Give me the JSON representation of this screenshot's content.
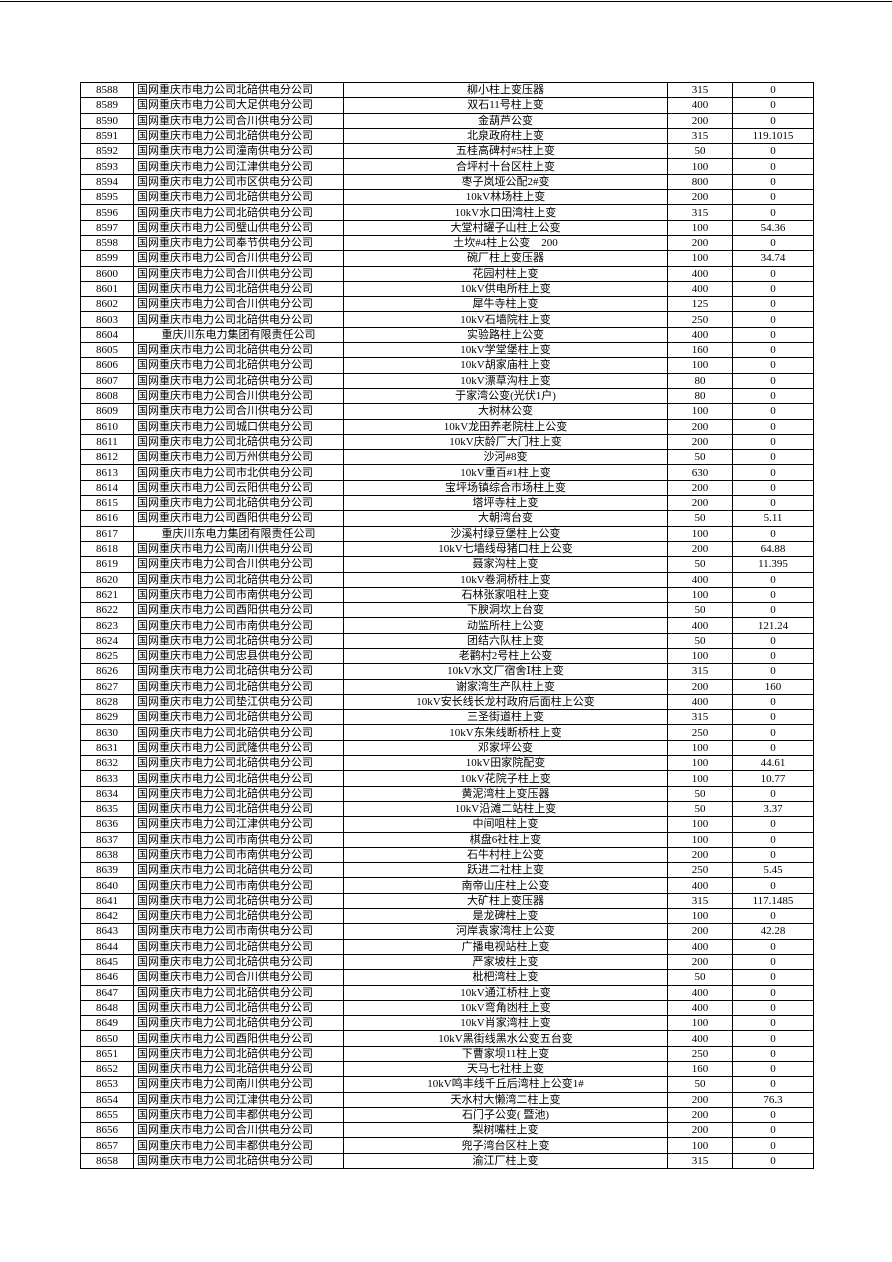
{
  "table": {
    "rows": [
      [
        "8588",
        "国网重庆市电力公司北碚供电分公司",
        "柳小柱上变压器",
        "315",
        "0"
      ],
      [
        "8589",
        "国网重庆市电力公司大足供电分公司",
        "双石11号柱上变",
        "400",
        "0"
      ],
      [
        "8590",
        "国网重庆市电力公司合川供电分公司",
        "金葫芦公变",
        "200",
        "0"
      ],
      [
        "8591",
        "国网重庆市电力公司北碚供电分公司",
        "北泉政府柱上变",
        "315",
        "119.1015"
      ],
      [
        "8592",
        "国网重庆市电力公司潼南供电分公司",
        "五桂高碑村#5柱上变",
        "50",
        "0"
      ],
      [
        "8593",
        "国网重庆市电力公司江津供电分公司",
        "合坪村十台区柱上变",
        "100",
        "0"
      ],
      [
        "8594",
        "国网重庆市电力公司市区供电分公司",
        "枣子岚垭公配2#变",
        "800",
        "0"
      ],
      [
        "8595",
        "国网重庆市电力公司北碚供电分公司",
        "10kV林场柱上变",
        "200",
        "0"
      ],
      [
        "8596",
        "国网重庆市电力公司北碚供电分公司",
        "10kV水口田湾柱上变",
        "315",
        "0"
      ],
      [
        "8597",
        "国网重庆市电力公司璧山供电分公司",
        "大堂村罐子山柱上公变",
        "100",
        "54.36"
      ],
      [
        "8598",
        "国网重庆市电力公司奉节供电分公司",
        "土坎#4柱上公变　200",
        "200",
        "0"
      ],
      [
        "8599",
        "国网重庆市电力公司合川供电分公司",
        "碗厂柱上变压器",
        "100",
        "34.74"
      ],
      [
        "8600",
        "国网重庆市电力公司合川供电分公司",
        "花园村柱上变",
        "400",
        "0"
      ],
      [
        "8601",
        "国网重庆市电力公司北碚供电分公司",
        "10kV供电所柱上变",
        "400",
        "0"
      ],
      [
        "8602",
        "国网重庆市电力公司合川供电分公司",
        "犀牛寺柱上变",
        "125",
        "0"
      ],
      [
        "8603",
        "国网重庆市电力公司北碚供电分公司",
        "10kV石墙院柱上变",
        "250",
        "0"
      ],
      [
        "8604",
        "重庆川东电力集团有限责任公司",
        "实验路柱上公变",
        "400",
        "0"
      ],
      [
        "8605",
        "国网重庆市电力公司北碚供电分公司",
        "10kV学堂堡柱上变",
        "160",
        "0"
      ],
      [
        "8606",
        "国网重庆市电力公司北碚供电分公司",
        "10kV胡家庙柱上变",
        "100",
        "0"
      ],
      [
        "8607",
        "国网重庆市电力公司北碚供电分公司",
        "10kV漂草沟柱上变",
        "80",
        "0"
      ],
      [
        "8608",
        "国网重庆市电力公司合川供电分公司",
        "于家湾公变(光伏1户)",
        "80",
        "0"
      ],
      [
        "8609",
        "国网重庆市电力公司合川供电分公司",
        "大树林公变",
        "100",
        "0"
      ],
      [
        "8610",
        "国网重庆市电力公司城口供电分公司",
        "10kV龙田养老院柱上公变",
        "200",
        "0"
      ],
      [
        "8611",
        "国网重庆市电力公司北碚供电分公司",
        "10kV庆龄厂大门柱上变",
        "200",
        "0"
      ],
      [
        "8612",
        "国网重庆市电力公司万州供电分公司",
        "沙河#8变",
        "50",
        "0"
      ],
      [
        "8613",
        "国网重庆市电力公司市北供电分公司",
        "10kV重百#1柱上变",
        "630",
        "0"
      ],
      [
        "8614",
        "国网重庆市电力公司云阳供电分公司",
        "宝坪场镇综合市场柱上变",
        "200",
        "0"
      ],
      [
        "8615",
        "国网重庆市电力公司北碚供电分公司",
        "塔坪寺柱上变",
        "200",
        "0"
      ],
      [
        "8616",
        "国网重庆市电力公司酉阳供电分公司",
        "大朝湾台变",
        "50",
        "5.11"
      ],
      [
        "8617",
        "重庆川东电力集团有限责任公司",
        "沙溪村绿豆堡柱上公变",
        "100",
        "0"
      ],
      [
        "8618",
        "国网重庆市电力公司南川供电分公司",
        "10kV七墙线母猪口柱上公变",
        "200",
        "64.88"
      ],
      [
        "8619",
        "国网重庆市电力公司合川供电分公司",
        "聂家沟柱上变",
        "50",
        "11.395"
      ],
      [
        "8620",
        "国网重庆市电力公司北碚供电分公司",
        "10kV卷洞桥柱上变",
        "400",
        "0"
      ],
      [
        "8621",
        "国网重庆市电力公司市南供电分公司",
        "石林张家咀柱上变",
        "100",
        "0"
      ],
      [
        "8622",
        "国网重庆市电力公司酉阳供电分公司",
        "下腴洞坎上台变",
        "50",
        "0"
      ],
      [
        "8623",
        "国网重庆市电力公司市南供电分公司",
        "动监所柱上公变",
        "400",
        "121.24"
      ],
      [
        "8624",
        "国网重庆市电力公司北碚供电分公司",
        "团结六队柱上变",
        "50",
        "0"
      ],
      [
        "8625",
        "国网重庆市电力公司忠县供电分公司",
        "老鹳村2号柱上公变",
        "100",
        "0"
      ],
      [
        "8626",
        "国网重庆市电力公司北碚供电分公司",
        "10kV水文厂宿舍Ⅰ柱上变",
        "315",
        "0"
      ],
      [
        "8627",
        "国网重庆市电力公司北碚供电分公司",
        "谢家湾生产队柱上变",
        "200",
        "160"
      ],
      [
        "8628",
        "国网重庆市电力公司垫江供电分公司",
        "10kV安长线长龙村政府后面柱上公变",
        "400",
        "0"
      ],
      [
        "8629",
        "国网重庆市电力公司北碚供电分公司",
        "三圣街道柱上变",
        "315",
        "0"
      ],
      [
        "8630",
        "国网重庆市电力公司北碚供电分公司",
        "10kV东朱线断桥柱上变",
        "250",
        "0"
      ],
      [
        "8631",
        "国网重庆市电力公司武隆供电分公司",
        "邓家坪公变",
        "100",
        "0"
      ],
      [
        "8632",
        "国网重庆市电力公司北碚供电分公司",
        "10kV田家院配变",
        "100",
        "44.61"
      ],
      [
        "8633",
        "国网重庆市电力公司北碚供电分公司",
        "10kV花院子柱上变",
        "100",
        "10.77"
      ],
      [
        "8634",
        "国网重庆市电力公司北碚供电分公司",
        "黄泥湾柱上变压器",
        "50",
        "0"
      ],
      [
        "8635",
        "国网重庆市电力公司北碚供电分公司",
        "10kV沿滩二站柱上变",
        "50",
        "3.37"
      ],
      [
        "8636",
        "国网重庆市电力公司江津供电分公司",
        "中间咀柱上变",
        "100",
        "0"
      ],
      [
        "8637",
        "国网重庆市电力公司市南供电分公司",
        "棋盘6社柱上变",
        "100",
        "0"
      ],
      [
        "8638",
        "国网重庆市电力公司市南供电分公司",
        "石牛村柱上公变",
        "200",
        "0"
      ],
      [
        "8639",
        "国网重庆市电力公司北碚供电分公司",
        "跃进二社柱上变",
        "250",
        "5.45"
      ],
      [
        "8640",
        "国网重庆市电力公司市南供电分公司",
        "南帝山庄柱上公变",
        "400",
        "0"
      ],
      [
        "8641",
        "国网重庆市电力公司北碚供电分公司",
        "大矿柱上变压器",
        "315",
        "117.1485"
      ],
      [
        "8642",
        "国网重庆市电力公司北碚供电分公司",
        "是龙碑柱上变",
        "100",
        "0"
      ],
      [
        "8643",
        "国网重庆市电力公司市南供电分公司",
        "河岸袁家湾柱上公变",
        "200",
        "42.28"
      ],
      [
        "8644",
        "国网重庆市电力公司北碚供电分公司",
        "广播电视站柱上变",
        "400",
        "0"
      ],
      [
        "8645",
        "国网重庆市电力公司北碚供电分公司",
        "严家坡柱上变",
        "200",
        "0"
      ],
      [
        "8646",
        "国网重庆市电力公司合川供电分公司",
        "枇杷湾柱上变",
        "50",
        "0"
      ],
      [
        "8647",
        "国网重庆市电力公司北碚供电分公司",
        "10kV通江桥柱上变",
        "400",
        "0"
      ],
      [
        "8648",
        "国网重庆市电力公司北碚供电分公司",
        "10kV弯角凼柱上变",
        "400",
        "0"
      ],
      [
        "8649",
        "国网重庆市电力公司北碚供电分公司",
        "10kV肖家湾柱上变",
        "100",
        "0"
      ],
      [
        "8650",
        "国网重庆市电力公司酉阳供电分公司",
        "10kV黑街线黑水公变五台变",
        "400",
        "0"
      ],
      [
        "8651",
        "国网重庆市电力公司北碚供电分公司",
        "下曹家坝11柱上变",
        "250",
        "0"
      ],
      [
        "8652",
        "国网重庆市电力公司北碚供电分公司",
        "天马七社柱上变",
        "160",
        "0"
      ],
      [
        "8653",
        "国网重庆市电力公司南川供电分公司",
        "10kV鸣丰线千丘后湾柱上公变1#",
        "50",
        "0"
      ],
      [
        "8654",
        "国网重庆市电力公司江津供电分公司",
        "天水村大懒湾二柱上变",
        "200",
        "76.3"
      ],
      [
        "8655",
        "国网重庆市电力公司丰都供电分公司",
        "石门子公变( 暨池)",
        "200",
        "0"
      ],
      [
        "8656",
        "国网重庆市电力公司合川供电分公司",
        "梨树嘴柱上变",
        "200",
        "0"
      ],
      [
        "8657",
        "国网重庆市电力公司丰都供电分公司",
        "兜子湾台区柱上变",
        "100",
        "0"
      ],
      [
        "8658",
        "国网重庆市电力公司北碚供电分公司",
        "渝江厂柱上变",
        "315",
        "0"
      ]
    ]
  }
}
